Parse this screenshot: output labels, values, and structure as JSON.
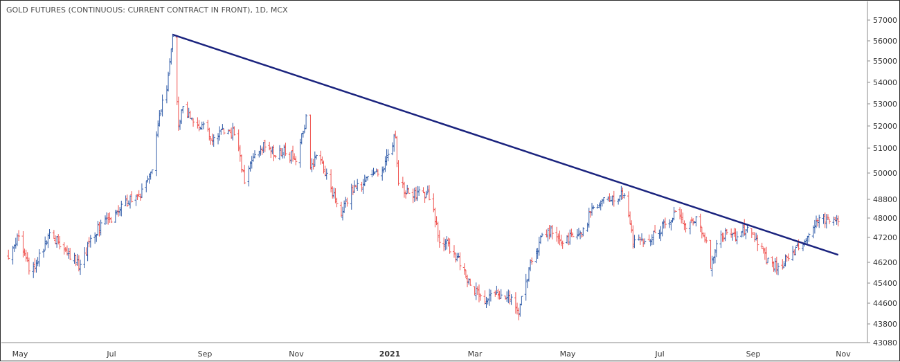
{
  "chart_data": {
    "type": "ohlc",
    "title": "GOLD FUTURES (CONTINUOUS: CURRENT CONTRACT IN FRONT), 1D, MCX",
    "y_ticks": [
      43080,
      43800,
      44600,
      45400,
      46200,
      47200,
      48000,
      48800,
      50000,
      51000,
      52000,
      53000,
      54000,
      55000,
      56000,
      57000
    ],
    "x_ticks": [
      {
        "label": "May",
        "bold": false
      },
      {
        "label": "Jul",
        "bold": false
      },
      {
        "label": "Sep",
        "bold": false
      },
      {
        "label": "Nov",
        "bold": false
      },
      {
        "label": "2021",
        "bold": true
      },
      {
        "label": "Mar",
        "bold": false
      },
      {
        "label": "May",
        "bold": false
      },
      {
        "label": "Jul",
        "bold": false
      },
      {
        "label": "Sep",
        "bold": false
      },
      {
        "label": "Nov",
        "bold": false
      }
    ],
    "x_range": [
      "2020-04-15",
      "2021-11-06"
    ],
    "trendline": {
      "start": {
        "date": "2020-08-07",
        "price": 56300
      },
      "end": {
        "date": "2021-11-04",
        "price": 46500
      },
      "color": "#1a237e"
    },
    "up_color": "#2f5ba8",
    "down_color": "#ef5350",
    "anchors": [
      [
        "2020-04-17",
        46500
      ],
      [
        "2020-04-24",
        47200
      ],
      [
        "2020-05-01",
        45900
      ],
      [
        "2020-05-08",
        46400
      ],
      [
        "2020-05-15",
        47300
      ],
      [
        "2020-05-22",
        47000
      ],
      [
        "2020-05-29",
        46500
      ],
      [
        "2020-06-05",
        46000
      ],
      [
        "2020-06-12",
        47100
      ],
      [
        "2020-06-19",
        47700
      ],
      [
        "2020-06-26",
        48000
      ],
      [
        "2020-07-03",
        48500
      ],
      [
        "2020-07-10",
        48800
      ],
      [
        "2020-07-17",
        49100
      ],
      [
        "2020-07-24",
        50200
      ],
      [
        "2020-07-28",
        52300
      ],
      [
        "2020-08-03",
        53800
      ],
      [
        "2020-08-07",
        56100
      ],
      [
        "2020-08-11",
        51900
      ],
      [
        "2020-08-14",
        52800
      ],
      [
        "2020-08-21",
        52200
      ],
      [
        "2020-08-28",
        51900
      ],
      [
        "2020-09-04",
        51300
      ],
      [
        "2020-09-11",
        51800
      ],
      [
        "2020-09-18",
        51700
      ],
      [
        "2020-09-25",
        49600
      ],
      [
        "2020-10-02",
        50700
      ],
      [
        "2020-10-09",
        51200
      ],
      [
        "2020-10-16",
        50700
      ],
      [
        "2020-10-23",
        50900
      ],
      [
        "2020-10-30",
        50500
      ],
      [
        "2020-11-06",
        52300
      ],
      [
        "2020-11-09",
        50300
      ],
      [
        "2020-11-16",
        50700
      ],
      [
        "2020-11-23",
        49200
      ],
      [
        "2020-11-30",
        48200
      ],
      [
        "2020-12-07",
        49300
      ],
      [
        "2020-12-14",
        49500
      ],
      [
        "2020-12-21",
        50100
      ],
      [
        "2020-12-28",
        50200
      ],
      [
        "2021-01-06",
        51500
      ],
      [
        "2021-01-08",
        49500
      ],
      [
        "2021-01-15",
        49000
      ],
      [
        "2021-01-22",
        49100
      ],
      [
        "2021-01-29",
        49000
      ],
      [
        "2021-02-05",
        47100
      ],
      [
        "2021-02-12",
        46800
      ],
      [
        "2021-02-19",
        46200
      ],
      [
        "2021-02-26",
        45400
      ],
      [
        "2021-03-05",
        44800
      ],
      [
        "2021-03-12",
        44900
      ],
      [
        "2021-03-19",
        44800
      ],
      [
        "2021-03-26",
        44700
      ],
      [
        "2021-03-31",
        44300
      ],
      [
        "2021-04-09",
        46300
      ],
      [
        "2021-04-16",
        47300
      ],
      [
        "2021-04-23",
        47400
      ],
      [
        "2021-04-30",
        46900
      ],
      [
        "2021-05-07",
        47300
      ],
      [
        "2021-05-14",
        47400
      ],
      [
        "2021-05-21",
        48600
      ],
      [
        "2021-05-28",
        48700
      ],
      [
        "2021-06-04",
        48800
      ],
      [
        "2021-06-11",
        49100
      ],
      [
        "2021-06-17",
        47100
      ],
      [
        "2021-06-25",
        47000
      ],
      [
        "2021-07-02",
        47300
      ],
      [
        "2021-07-09",
        47800
      ],
      [
        "2021-07-16",
        48100
      ],
      [
        "2021-07-23",
        47700
      ],
      [
        "2021-07-30",
        47900
      ],
      [
        "2021-08-06",
        47200
      ],
      [
        "2021-08-09",
        46000
      ],
      [
        "2021-08-13",
        46900
      ],
      [
        "2021-08-20",
        47400
      ],
      [
        "2021-08-27",
        47200
      ],
      [
        "2021-09-03",
        47600
      ],
      [
        "2021-09-10",
        47100
      ],
      [
        "2021-09-17",
        46200
      ],
      [
        "2021-09-24",
        46100
      ],
      [
        "2021-09-30",
        46300
      ],
      [
        "2021-10-08",
        46900
      ],
      [
        "2021-10-15",
        47400
      ],
      [
        "2021-10-22",
        48100
      ],
      [
        "2021-10-29",
        47900
      ],
      [
        "2021-11-04",
        47900
      ]
    ]
  }
}
